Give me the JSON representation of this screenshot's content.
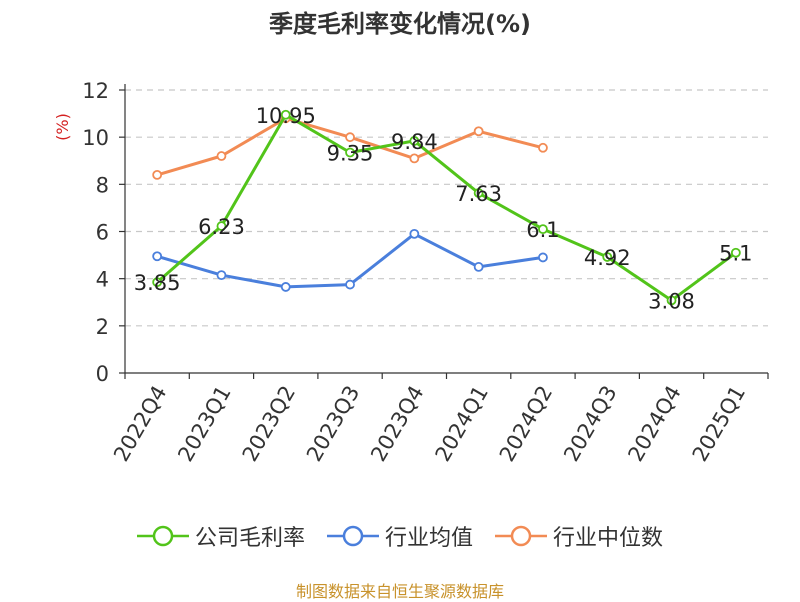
{
  "chart_data": {
    "type": "line",
    "title": "季度毛利率变化情况(%)",
    "ylabel": "(%)",
    "xlabel": "",
    "categories": [
      "2022Q4",
      "2023Q1",
      "2023Q2",
      "2023Q3",
      "2023Q4",
      "2024Q1",
      "2024Q2",
      "2024Q3",
      "2024Q4",
      "2025Q1"
    ],
    "ylim": [
      0,
      12
    ],
    "yticks": [
      0,
      2,
      4,
      6,
      8,
      10,
      12
    ],
    "grid": "horizontal dashed",
    "legend_position": "bottom",
    "series": [
      {
        "name": "公司毛利率",
        "color": "#52c41a",
        "values": [
          3.85,
          6.23,
          10.95,
          9.35,
          9.84,
          7.63,
          6.1,
          4.92,
          3.08,
          5.1
        ],
        "labels": [
          "3.85",
          "6.23",
          "10.95",
          "9.35",
          "9.84",
          "7.63",
          "6.1",
          "4.92",
          "3.08",
          "5.1"
        ]
      },
      {
        "name": "行业均值",
        "color": "#4a7fdc",
        "values": [
          4.95,
          4.15,
          3.65,
          3.75,
          5.9,
          4.5,
          4.9,
          null,
          null,
          null
        ]
      },
      {
        "name": "行业中位数",
        "color": "#f28b54",
        "values": [
          8.4,
          9.2,
          10.8,
          10.0,
          9.1,
          10.25,
          9.55,
          null,
          null,
          null
        ]
      }
    ]
  },
  "source_note": "制图数据来自恒生聚源数据库"
}
